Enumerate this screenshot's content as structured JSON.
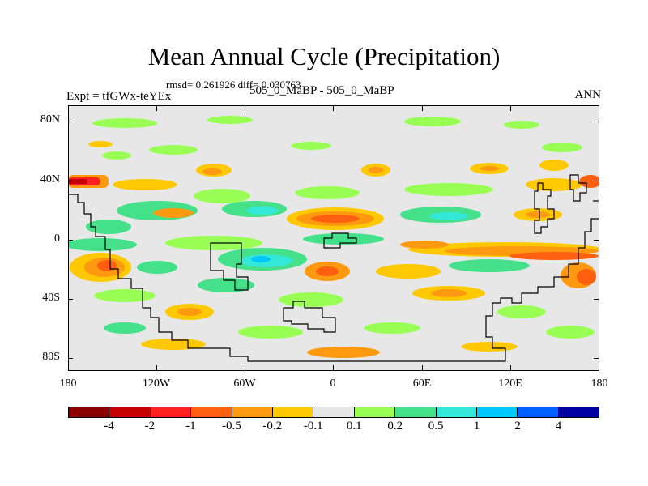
{
  "figure": {
    "title": "Mean Annual Cycle (Precipitation)",
    "stats_text": "rmsd= 0.261926 diff= 0.030763",
    "experiment_label": "Expt = tfGWx-teYEx",
    "difference_label": "505_0_MaBP - 505_0_MaBP",
    "season_label": "ANN"
  },
  "map": {
    "y_ticks": [
      "80N",
      "40N",
      "0",
      "40S",
      "80S"
    ],
    "x_ticks": [
      "180",
      "120W",
      "60W",
      "0",
      "60E",
      "120E",
      "180"
    ]
  },
  "colorbar": {
    "colors": [
      "#8b0000",
      "#c40000",
      "#ff2020",
      "#ff6010",
      "#ff9a10",
      "#ffc800",
      "#e7e7e7",
      "#99ff55",
      "#44e08a",
      "#33e8d8",
      "#00c8ff",
      "#0060ff",
      "#0000a0"
    ],
    "labels": [
      "-4",
      "-2",
      "-1",
      "-0.5",
      "-0.2",
      "-0.1",
      "0.1",
      "0.2",
      "0.5",
      "1",
      "2",
      "4"
    ]
  }
}
